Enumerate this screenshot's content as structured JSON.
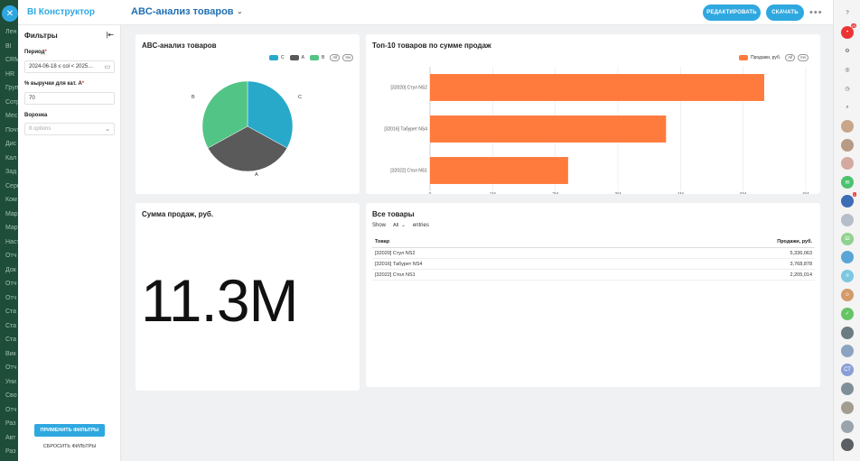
{
  "app": {
    "title": "BI Конструктор",
    "close_icon": "close-icon"
  },
  "background_nav": [
    "Лен",
    "BI",
    "CRM",
    "HR",
    "Груп",
    "Сотр",
    "Мес",
    "Почт",
    "Дис",
    "Кал",
    "Зад",
    "Серв",
    "Ком",
    "Мар",
    "Мар",
    "Наст",
    "Отч",
    "Док",
    "Отч",
    "Отч",
    "Ста",
    "Ста",
    "Ста",
    "Вик",
    "Отч",
    "Уни",
    "Сво",
    "Отч",
    "Раз",
    "Авт",
    "Раз"
  ],
  "header": {
    "page_title": "ABC-анализ товаров",
    "edit_label": "РЕДАКТИРОВАТЬ",
    "download_label": "СКАЧАТЬ",
    "more_label": "•••"
  },
  "filters": {
    "title": "Фильтры",
    "period_label": "Период",
    "period_value": "2024-06-18 ≤ col < 2025…",
    "revenue_label": "% выручки для кат. А",
    "revenue_value": "70",
    "funnel_label": "Воронка",
    "funnel_placeholder": "8 options",
    "apply_label": "ПРИМЕНИТЬ ФИЛЬТРЫ",
    "reset_label": "СБРОСИТЬ ФИЛЬТРЫ"
  },
  "pie_card": {
    "title": "ABC-анализ товаров",
    "legend": [
      {
        "name": "C",
        "color": "#29a9c9"
      },
      {
        "name": "A",
        "color": "#5a5a5a"
      },
      {
        "name": "B",
        "color": "#52c486"
      }
    ],
    "chips": [
      "All",
      "Inv"
    ],
    "labels": {
      "C": "C",
      "A": "A",
      "B": "B"
    }
  },
  "bar_card": {
    "title": "Топ-10 товаров по сумме продаж",
    "legend_label": "Продажи, руб.",
    "legend_color": "#ff7a3d",
    "chips": [
      "All",
      "Inv"
    ]
  },
  "kpi_card": {
    "title": "Сумма продаж, руб.",
    "value": "11.3M"
  },
  "table_card": {
    "title": "Все товары",
    "show_label": "Show",
    "page_size": "All",
    "entries_label": "entries",
    "columns": [
      "Товар",
      "Продажи, руб."
    ],
    "rows": [
      [
        "[32020] Стул NS2",
        "5,336,063"
      ],
      [
        "[32016] Табурет NS4",
        "3,768,878"
      ],
      [
        "[32022] Стол NS1",
        "2,205,014"
      ]
    ]
  },
  "chart_data": [
    {
      "type": "pie",
      "title": "ABC-анализ товаров",
      "categories": [
        "C",
        "A",
        "B"
      ],
      "values": [
        0.33,
        0.34,
        0.33
      ],
      "colors": [
        "#29a9c9",
        "#5a5a5a",
        "#52c486"
      ],
      "legend": "top-right"
    },
    {
      "type": "bar",
      "orientation": "horizontal",
      "title": "Топ-10 товаров по сумме продаж",
      "categories": [
        "[32022] Стол NS1",
        "[32016] Табурет NS4",
        "[32020] Стул NS2"
      ],
      "series": [
        {
          "name": "Продажи, руб.",
          "values": [
            2205014,
            3768878,
            5336063
          ]
        }
      ],
      "xlim": [
        0,
        6000000
      ],
      "xticks": [
        "0",
        "1M",
        "2M",
        "3M",
        "4M",
        "5M",
        "6M"
      ],
      "grid": true,
      "legend": "top-right"
    }
  ],
  "right_rail": [
    {
      "name": "help-icon",
      "color": "#555",
      "glyph": "?"
    },
    {
      "name": "notifications-icon",
      "color": "#e33",
      "glyph": "•",
      "badge": "20"
    },
    {
      "name": "settings-icon",
      "color": "#555",
      "glyph": "⚙"
    },
    {
      "name": "copilot-icon",
      "color": "#555",
      "glyph": "◎"
    },
    {
      "name": "timer-icon",
      "color": "#555",
      "glyph": "◷"
    },
    {
      "name": "search-icon",
      "color": "#555",
      "glyph": "⌕"
    },
    {
      "name": "avatar-1",
      "color": "#c9a58a",
      "glyph": ""
    },
    {
      "name": "avatar-2",
      "color": "#b89b85",
      "glyph": ""
    },
    {
      "name": "avatar-3",
      "color": "#d4a9a0",
      "glyph": ""
    },
    {
      "name": "chat-icon",
      "color": "#4cc26e",
      "glyph": "✉"
    },
    {
      "name": "avatar-4",
      "color": "#3d6db5",
      "glyph": "",
      "badge": "1"
    },
    {
      "name": "avatar-5",
      "color": "#b5bfc9",
      "glyph": ""
    },
    {
      "name": "group-chat-icon",
      "color": "#8fd28f",
      "glyph": "Ш"
    },
    {
      "name": "avatar-6",
      "color": "#5aa5d6",
      "glyph": ""
    },
    {
      "name": "group-icon",
      "color": "#7cc8e0",
      "glyph": "≡"
    },
    {
      "name": "users-icon",
      "color": "#d49a6a",
      "glyph": "☺"
    },
    {
      "name": "tasks-icon",
      "color": "#66c465",
      "glyph": "✓"
    },
    {
      "name": "avatar-7",
      "color": "#6a7c80",
      "glyph": ""
    },
    {
      "name": "avatar-8",
      "color": "#8aa4c1",
      "glyph": ""
    },
    {
      "name": "initials-avatar",
      "color": "#8a9ed6",
      "glyph": "СТ"
    },
    {
      "name": "avatar-9",
      "color": "#7f8f98",
      "glyph": ""
    },
    {
      "name": "avatar-10",
      "color": "#a39d91",
      "glyph": ""
    },
    {
      "name": "avatar-11",
      "color": "#9ba4ad",
      "glyph": ""
    },
    {
      "name": "avatar-12",
      "color": "#5a6063",
      "glyph": ""
    }
  ]
}
